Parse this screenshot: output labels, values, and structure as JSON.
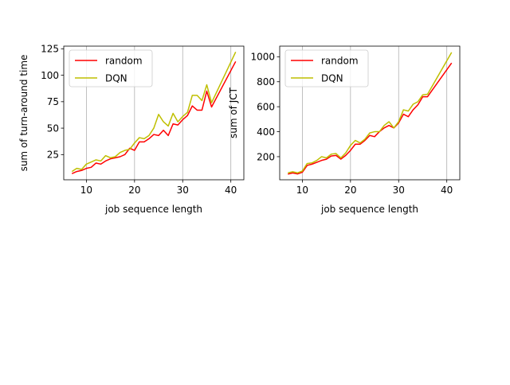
{
  "colors": {
    "random": "#ff0000",
    "dqn": "#bfbf00",
    "grid": "#b0b0b0",
    "axis": "#000000"
  },
  "chart_data": [
    {
      "type": "line",
      "xlabel": "job sequence length",
      "ylabel": "sum of turn-around time",
      "xlim": [
        5.3,
        42.7
      ],
      "ylim": [
        1.2,
        127.5
      ],
      "xticks": [
        10,
        20,
        30,
        40
      ],
      "yticks": [
        25,
        50,
        75,
        100,
        125
      ],
      "grid": "x-only",
      "legend": "upper left",
      "series": [
        {
          "name": "random",
          "color": "#ff0000",
          "x": [
            7,
            8,
            9,
            10,
            11,
            12,
            13,
            14,
            15,
            16,
            17,
            18,
            19,
            20,
            21,
            22,
            23,
            24,
            25,
            26,
            27,
            28,
            29,
            30,
            31,
            32,
            33,
            34,
            35,
            36,
            41
          ],
          "y": [
            7,
            9,
            10,
            12,
            13,
            17,
            16,
            19,
            21,
            22,
            23,
            25,
            31,
            29,
            37,
            37,
            40,
            44,
            43,
            48,
            43,
            54,
            53,
            58,
            62,
            71,
            67,
            67,
            85,
            70,
            113
          ]
        },
        {
          "name": "DQN",
          "color": "#bfbf00",
          "x": [
            7,
            8,
            9,
            10,
            11,
            12,
            13,
            14,
            15,
            16,
            17,
            18,
            19,
            20,
            21,
            22,
            23,
            24,
            25,
            26,
            27,
            28,
            29,
            30,
            31,
            32,
            33,
            34,
            35,
            36,
            41
          ],
          "y": [
            9,
            12,
            11,
            16,
            18,
            20,
            19,
            24,
            22,
            23,
            27,
            29,
            30,
            36,
            41,
            40,
            43,
            50,
            63,
            56,
            52,
            64,
            56,
            61,
            65,
            81,
            81,
            76,
            91,
            74,
            122
          ]
        }
      ]
    },
    {
      "type": "line",
      "xlabel": "job sequence length",
      "ylabel": "sum of JCT",
      "xlim": [
        5.3,
        42.7
      ],
      "ylim": [
        15,
        1085
      ],
      "xticks": [
        10,
        20,
        30,
        40
      ],
      "yticks": [
        200,
        400,
        600,
        800,
        1000
      ],
      "grid": "x-only",
      "legend": "upper left",
      "series": [
        {
          "name": "random",
          "color": "#ff0000",
          "x": [
            7,
            8,
            9,
            10,
            11,
            12,
            13,
            14,
            15,
            16,
            17,
            18,
            19,
            20,
            21,
            22,
            23,
            24,
            25,
            26,
            27,
            28,
            29,
            30,
            31,
            32,
            33,
            34,
            35,
            36,
            41
          ],
          "y": [
            60,
            70,
            62,
            75,
            130,
            140,
            155,
            170,
            180,
            205,
            210,
            180,
            210,
            250,
            300,
            300,
            330,
            370,
            360,
            400,
            430,
            450,
            430,
            470,
            540,
            520,
            575,
            615,
            680,
            680,
            950
          ]
        },
        {
          "name": "DQN",
          "color": "#bfbf00",
          "x": [
            7,
            8,
            9,
            10,
            11,
            12,
            13,
            14,
            15,
            16,
            17,
            18,
            19,
            20,
            21,
            22,
            23,
            24,
            25,
            26,
            27,
            28,
            29,
            30,
            31,
            32,
            33,
            34,
            35,
            36,
            41
          ],
          "y": [
            70,
            80,
            70,
            85,
            145,
            150,
            170,
            200,
            190,
            220,
            225,
            190,
            230,
            290,
            330,
            310,
            340,
            390,
            400,
            400,
            450,
            480,
            430,
            480,
            575,
            565,
            620,
            640,
            695,
            700,
            1035
          ]
        }
      ]
    }
  ]
}
